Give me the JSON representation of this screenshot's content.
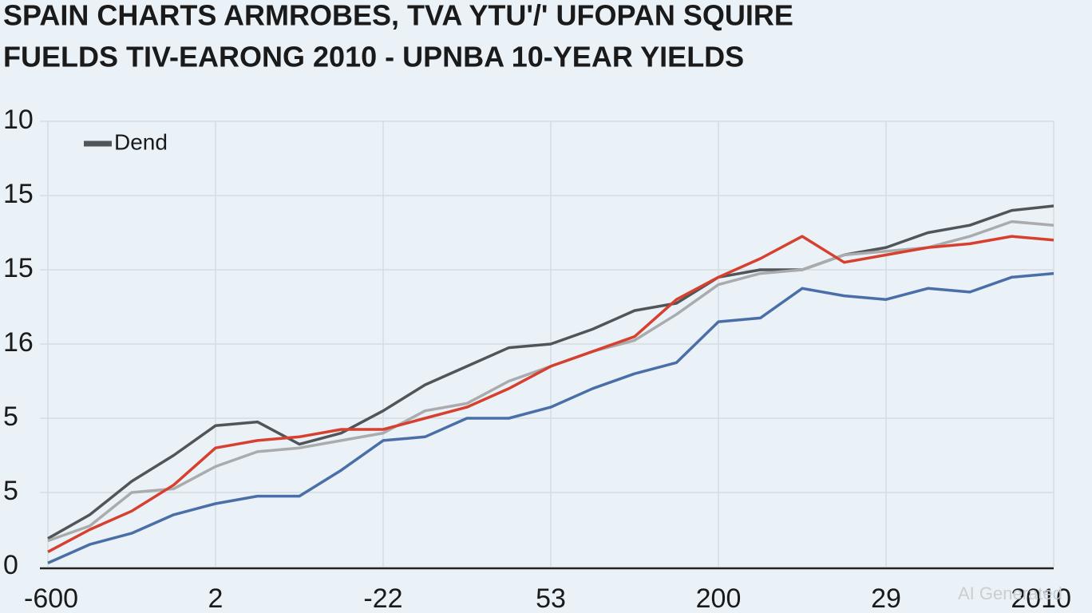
{
  "chart_data": {
    "type": "line",
    "title": [
      "SPAIN CHARTS ARMROBES, TVA YTU'/' UFOPAN SQUIRE",
      "FUELDS TIV-EARONG 2010 - UPNBA 10-YEAR YIELDS"
    ],
    "x": [
      0,
      0.25,
      0.5,
      0.75,
      1,
      1.25,
      1.5,
      1.75,
      2,
      2.25,
      2.5,
      2.75,
      3,
      3.25,
      3.5,
      3.75,
      4,
      4.25,
      4.5,
      4.75,
      5,
      5.25,
      5.5,
      5.75,
      6
    ],
    "series": [
      {
        "name": "Dend",
        "color": "#505559",
        "values": [
          0.38,
          0.7,
          1.15,
          1.5,
          1.9,
          1.95,
          1.65,
          1.8,
          2.1,
          2.45,
          2.7,
          2.95,
          3.0,
          3.2,
          3.45,
          3.55,
          3.9,
          4.0,
          4.0,
          4.2,
          4.3,
          4.5,
          4.6,
          4.8,
          4.86
        ]
      },
      {
        "color": "#a9abad",
        "values": [
          0.35,
          0.55,
          1.0,
          1.05,
          1.35,
          1.55,
          1.6,
          1.7,
          1.8,
          2.1,
          2.2,
          2.5,
          2.7,
          2.9,
          3.05,
          3.4,
          3.8,
          3.95,
          4.0,
          4.2,
          4.25,
          4.3,
          4.45,
          4.65,
          4.6
        ]
      },
      {
        "color": "#d7402f",
        "values": [
          0.2,
          0.5,
          0.75,
          1.1,
          1.6,
          1.7,
          1.75,
          1.85,
          1.85,
          2.0,
          2.15,
          2.4,
          2.7,
          2.9,
          3.1,
          3.6,
          3.9,
          4.15,
          4.45,
          4.1,
          4.2,
          4.3,
          4.35,
          4.45,
          4.4
        ]
      },
      {
        "color": "#4a6fa8",
        "values": [
          0.05,
          0.3,
          0.45,
          0.7,
          0.85,
          0.95,
          0.95,
          1.3,
          1.7,
          1.75,
          2.0,
          2.0,
          2.15,
          2.4,
          2.6,
          2.75,
          3.3,
          3.35,
          3.75,
          3.65,
          3.6,
          3.75,
          3.7,
          3.9,
          3.95
        ]
      }
    ],
    "xlim": [
      0,
      6
    ],
    "xticks": [
      {
        "value": 0,
        "label": "-600"
      },
      {
        "value": 1,
        "label": "2"
      },
      {
        "value": 2,
        "label": "-22"
      },
      {
        "value": 3,
        "label": "53"
      },
      {
        "value": 4,
        "label": "200"
      },
      {
        "value": 5,
        "label": "29"
      },
      {
        "value": 6,
        "label": "2010"
      }
    ],
    "ylim": [
      0,
      6
    ],
    "yticks": [
      {
        "value": 0,
        "label": "0"
      },
      {
        "value": 1,
        "label": "5"
      },
      {
        "value": 2,
        "label": "5"
      },
      {
        "value": 3,
        "label": "16"
      },
      {
        "value": 4,
        "label": "15"
      },
      {
        "value": 5,
        "label": "15"
      },
      {
        "value": 6,
        "label": "10"
      }
    ],
    "grid": true,
    "legend": "upper left",
    "watermark": "AI Generated"
  }
}
